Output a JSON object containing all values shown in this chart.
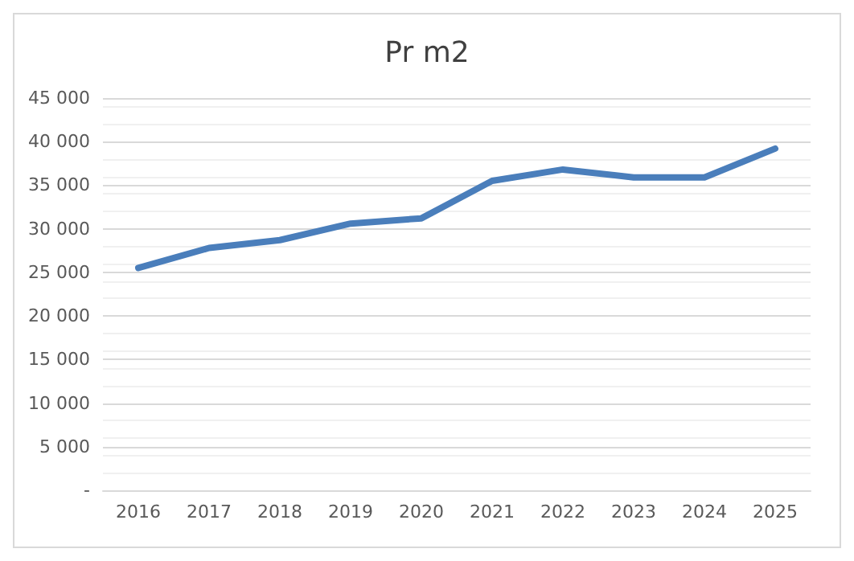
{
  "chart_data": {
    "type": "line",
    "title": "Pr m2",
    "categories": [
      "2016",
      "2017",
      "2018",
      "2019",
      "2020",
      "2021",
      "2022",
      "2023",
      "2024",
      "2025"
    ],
    "series": [
      {
        "color": "#4a7ebb",
        "values": [
          25500,
          27800,
          28700,
          30600,
          31200,
          35500,
          36800,
          35900,
          35900,
          39200
        ]
      }
    ],
    "ylim": [
      0,
      45000
    ],
    "yticks": [
      {
        "value": 0,
        "label": "-"
      },
      {
        "value": 5000,
        "label": "5 000"
      },
      {
        "value": 10000,
        "label": "10 000"
      },
      {
        "value": 15000,
        "label": "15 000"
      },
      {
        "value": 20000,
        "label": "20 000"
      },
      {
        "value": 25000,
        "label": "25 000"
      },
      {
        "value": 30000,
        "label": "30 000"
      },
      {
        "value": 35000,
        "label": "35 000"
      },
      {
        "value": 40000,
        "label": "40 000"
      },
      {
        "value": 45000,
        "label": "45 000"
      }
    ],
    "grid": "y",
    "marker": "none",
    "line_style": "solid"
  }
}
